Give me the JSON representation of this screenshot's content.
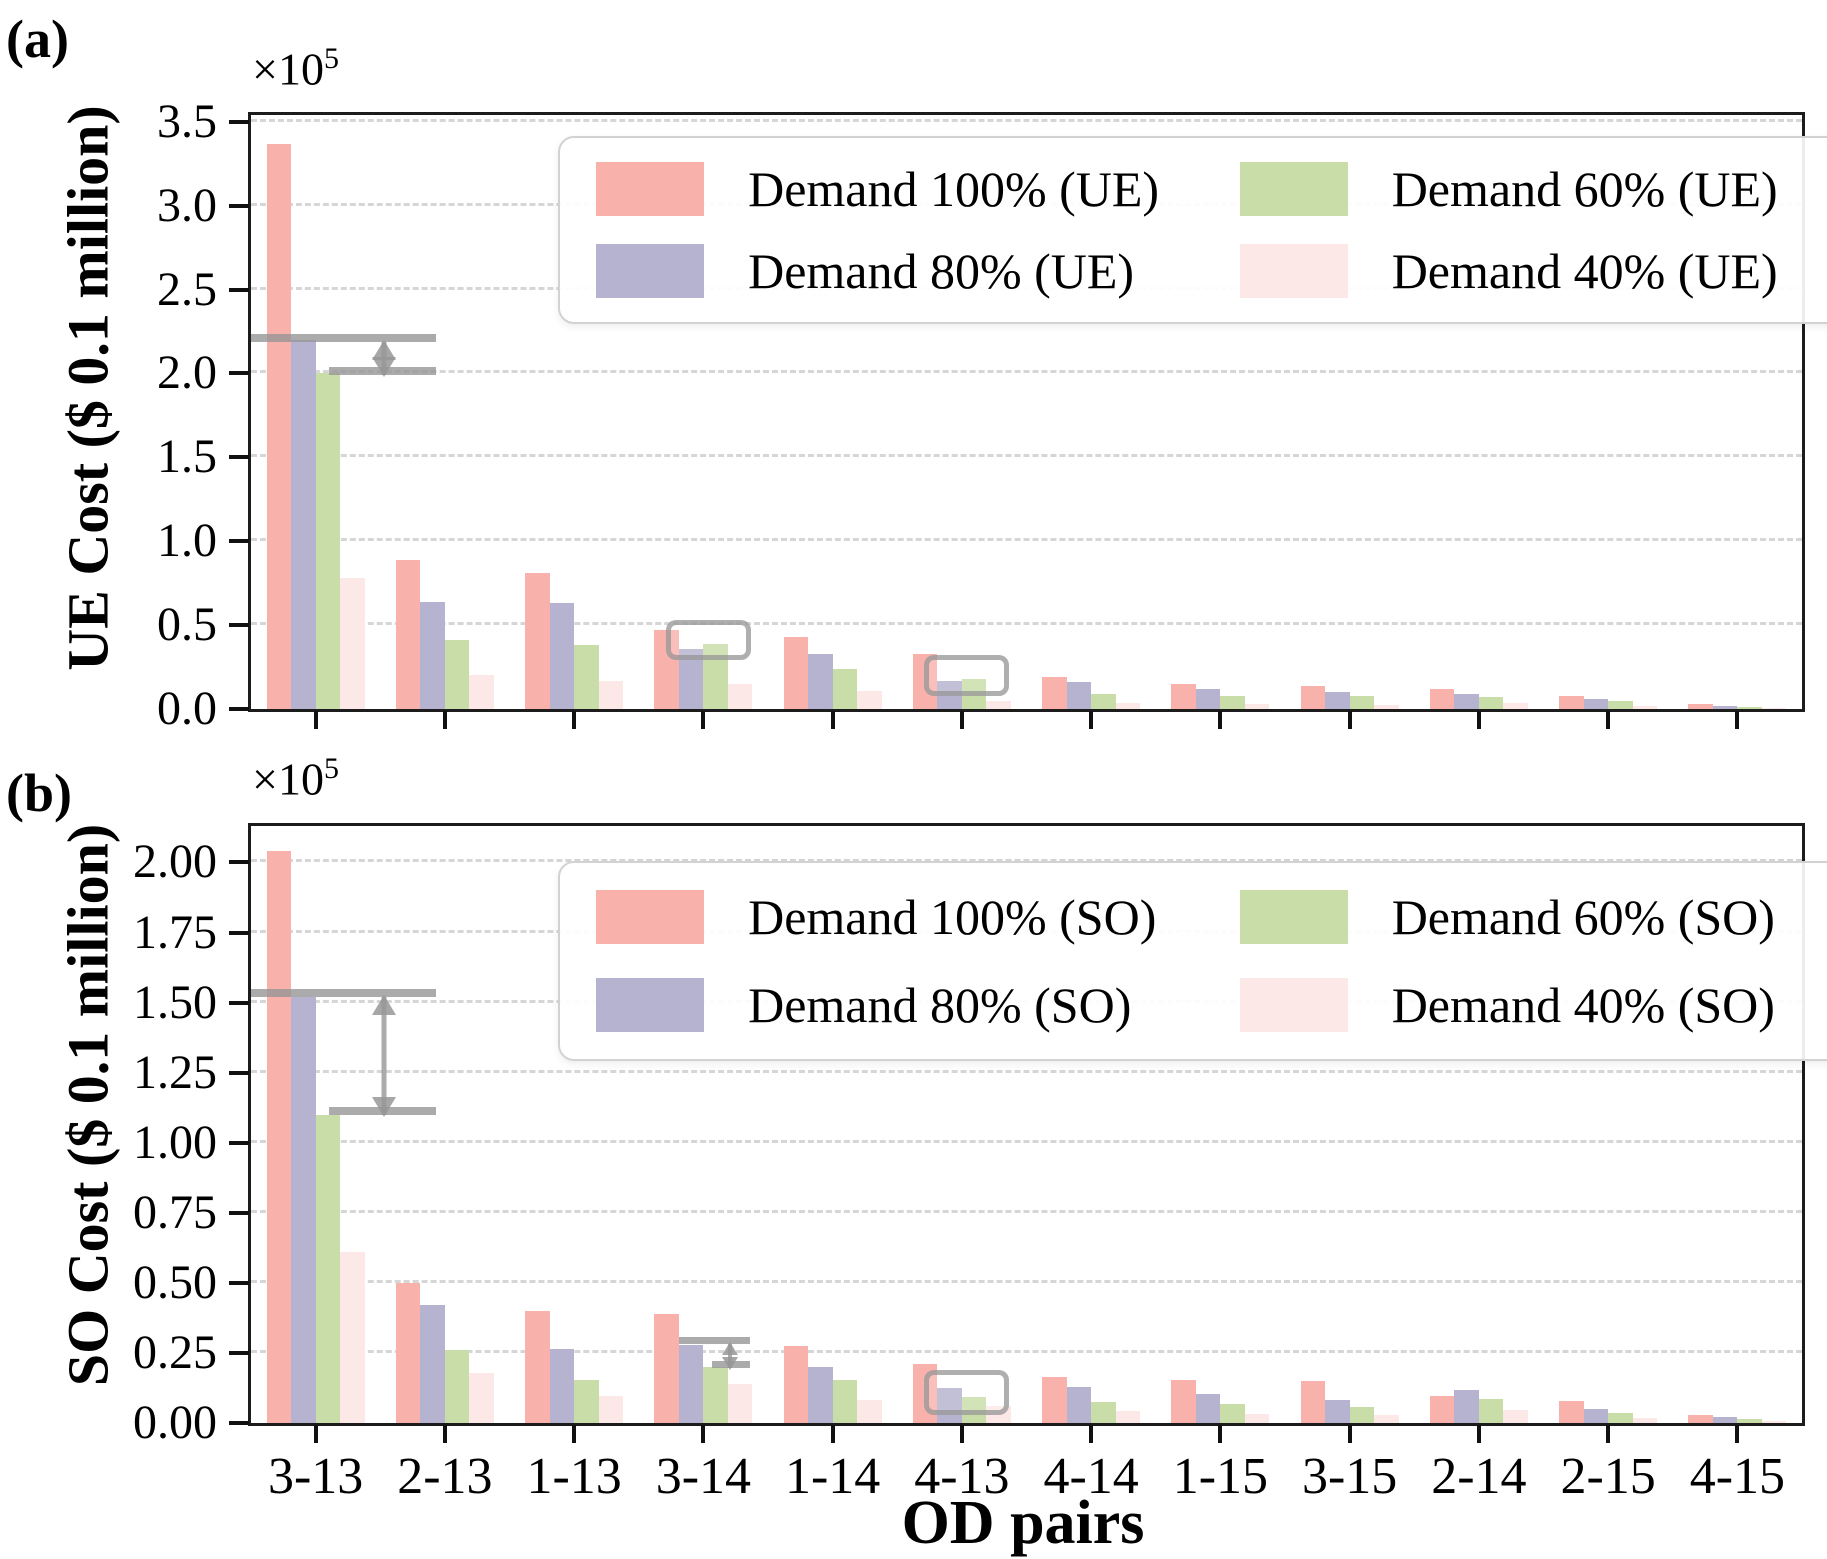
{
  "figure": {
    "x_axis_title": "OD pairs",
    "categories": [
      "3-13",
      "2-13",
      "1-13",
      "3-14",
      "1-14",
      "4-13",
      "4-14",
      "1-15",
      "3-15",
      "2-14",
      "2-15",
      "4-15"
    ],
    "colors": {
      "demand_100": "#f9b1ac",
      "demand_80": "#b5b3cf",
      "demand_60": "#c8dda8",
      "demand_40": "#fce8e6",
      "annotation_gray": "#969696",
      "gridline": "#d6d6d6",
      "axis": "#1c1c1c"
    },
    "panels": [
      {
        "letter": "(a)",
        "y_axis_title": "UE Cost ($ 0.1 million)",
        "scale_base": "×10",
        "scale_exponent": "5"
      },
      {
        "letter": "(b)",
        "y_axis_title": "SO Cost ($ 0.1 million)",
        "scale_base": "×10",
        "scale_exponent": "5"
      }
    ]
  },
  "chart_data": [
    {
      "type": "bar",
      "panel": "a",
      "ylabel": "UE Cost ($ 0.1 million)",
      "xlabel": "",
      "y_scale_factor": "1e5",
      "ylim": [
        0,
        3.54
      ],
      "yticks": [
        0.0,
        0.5,
        1.0,
        1.5,
        2.0,
        2.5,
        3.0,
        3.5
      ],
      "ytick_labels": [
        "0.0",
        "0.5",
        "1.0",
        "1.5",
        "2.0",
        "2.5",
        "3.0",
        "3.5"
      ],
      "grid": "horizontal-dashed",
      "legend_position": "upper-center-inside",
      "show_xlabels": false,
      "categories": [
        "3-13",
        "2-13",
        "1-13",
        "3-14",
        "1-14",
        "4-13",
        "4-14",
        "1-15",
        "3-15",
        "2-14",
        "2-15",
        "4-15"
      ],
      "series": [
        {
          "name": "Demand 100% (UE)",
          "key": "demand_100",
          "values": [
            3.37,
            0.89,
            0.81,
            0.47,
            0.43,
            0.33,
            0.19,
            0.15,
            0.14,
            0.12,
            0.08,
            0.03
          ]
        },
        {
          "name": "Demand 80% (UE)",
          "key": "demand_80",
          "values": [
            2.2,
            0.64,
            0.63,
            0.36,
            0.33,
            0.17,
            0.16,
            0.12,
            0.1,
            0.09,
            0.06,
            0.02
          ]
        },
        {
          "name": "Demand 60% (UE)",
          "key": "demand_60",
          "values": [
            2.0,
            0.41,
            0.38,
            0.39,
            0.24,
            0.18,
            0.09,
            0.08,
            0.08,
            0.07,
            0.05,
            0.012
          ]
        },
        {
          "name": "Demand 40% (UE)",
          "key": "demand_40",
          "values": [
            0.78,
            0.2,
            0.17,
            0.15,
            0.11,
            0.05,
            0.035,
            0.03,
            0.025,
            0.035,
            0.018,
            0.006
          ]
        }
      ],
      "annotations": [
        {
          "type": "bracket",
          "group": 0,
          "y1": 2.19,
          "y2": 1.99,
          "small": false
        },
        {
          "type": "box",
          "group": 3,
          "y1": 0.47,
          "y2": 0.29
        },
        {
          "type": "box",
          "group": 5,
          "y1": 0.26,
          "y2": 0.08
        }
      ]
    },
    {
      "type": "bar",
      "panel": "b",
      "ylabel": "SO Cost ($ 0.1 million)",
      "xlabel": "OD pairs",
      "y_scale_factor": "1e5",
      "ylim": [
        0,
        2.13
      ],
      "yticks": [
        0.0,
        0.25,
        0.5,
        0.75,
        1.0,
        1.25,
        1.5,
        1.75,
        2.0
      ],
      "ytick_labels": [
        "0.00",
        "0.25",
        "0.50",
        "0.75",
        "1.00",
        "1.25",
        "1.50",
        "1.75",
        "2.00"
      ],
      "grid": "horizontal-dashed",
      "legend_position": "upper-center-inside",
      "show_xlabels": true,
      "categories": [
        "3-13",
        "2-13",
        "1-13",
        "3-14",
        "1-14",
        "4-13",
        "4-14",
        "1-15",
        "3-15",
        "2-14",
        "2-15",
        "4-15"
      ],
      "series": [
        {
          "name": "Demand 100% (SO)",
          "key": "demand_100",
          "values": [
            2.04,
            0.5,
            0.4,
            0.39,
            0.275,
            0.21,
            0.165,
            0.155,
            0.15,
            0.095,
            0.078,
            0.028
          ]
        },
        {
          "name": "Demand 80% (SO)",
          "key": "demand_80",
          "values": [
            1.52,
            0.42,
            0.265,
            0.28,
            0.2,
            0.125,
            0.13,
            0.105,
            0.083,
            0.118,
            0.05,
            0.02
          ]
        },
        {
          "name": "Demand 60% (SO)",
          "key": "demand_60",
          "values": [
            1.1,
            0.26,
            0.155,
            0.2,
            0.155,
            0.093,
            0.075,
            0.068,
            0.057,
            0.086,
            0.034,
            0.014
          ]
        },
        {
          "name": "Demand 40% (SO)",
          "key": "demand_40",
          "values": [
            0.61,
            0.18,
            0.097,
            0.14,
            0.082,
            0.06,
            0.043,
            0.033,
            0.027,
            0.047,
            0.018,
            0.009
          ]
        }
      ],
      "annotations": [
        {
          "type": "bracket",
          "group": 0,
          "y1": 1.52,
          "y2": 1.1,
          "small": false
        },
        {
          "type": "bracket",
          "group": 3,
          "y1": 0.282,
          "y2": 0.195,
          "small": true
        },
        {
          "type": "box",
          "group": 5,
          "y1": 0.155,
          "y2": 0.03
        }
      ]
    }
  ]
}
